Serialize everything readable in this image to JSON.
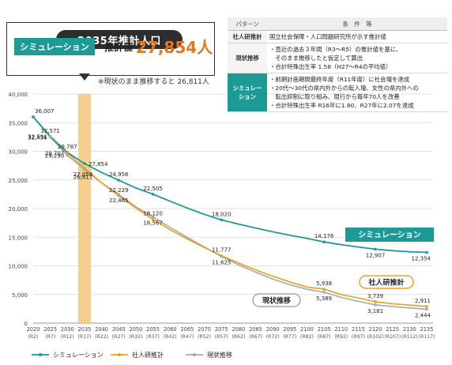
{
  "callout": {
    "title": "2035年推計人口",
    "badge": "シミュレーション",
    "estimate_label": "推計値",
    "estimate_value": "27,854人",
    "note": "※現状のまま推移すると 26,811人"
  },
  "conditions": {
    "headers": [
      "パターン",
      "条　件　等"
    ],
    "rows": [
      {
        "pattern": "社人研推計",
        "lines": [
          "国立社会保障・人口問題研究所が示す推計値"
        ]
      },
      {
        "pattern": "現状推移",
        "lines": [
          "・直近の過去３年間（R3～R5）の推計値を基に、",
          "　そのまま推移したと仮定して算出",
          "・合計特殊出生率 1.58（H27～R4の平均値）"
        ]
      },
      {
        "pattern": "シミュレーション",
        "lines": [
          "・前期計画期間最終年度（R11年度）に社会増を達成",
          "・20代～30代の県内外からの転入増、女性の県内外への",
          "　転出抑制に取り組み、現行から毎年70人を改善",
          "・合計特殊出生率 R16年に1.80、R27年に2.07を達成"
        ]
      }
    ]
  },
  "colors": {
    "simulation": "#1e9a96",
    "ipss": "#e8a020",
    "current": "#a8a8a8",
    "highlight": "#f3c67d",
    "tag_sim_bg": "#1e9a96"
  },
  "chart_data": {
    "type": "line",
    "x": [
      "2020",
      "2025",
      "2030",
      "2035",
      "2040",
      "2045",
      "2050",
      "2055",
      "2060",
      "2065",
      "2070",
      "2075",
      "2080",
      "2085",
      "2090",
      "2095",
      "2100",
      "2105",
      "2110",
      "2115",
      "2120",
      "2125",
      "2130",
      "2135"
    ],
    "x_sub": [
      "(R2)",
      "(R7)",
      "(R12)",
      "(R17)",
      "(R22)",
      "(R27)",
      "(R32)",
      "(R37)",
      "(R42)",
      "(R47)",
      "(R52)",
      "(R57)",
      "(R62)",
      "(R67)",
      "(R72)",
      "(R77)",
      "(R82)",
      "(R87)",
      "(R92)",
      "(R97)",
      "(R102)",
      "(R107)",
      "(R112)",
      "(R117)"
    ],
    "ylim": [
      0,
      40000
    ],
    "yticks": [
      "0",
      "5,000",
      "10,000",
      "15,000",
      "20,000",
      "25,000",
      "30,000",
      "35,000",
      "40,000"
    ],
    "highlight_x": "2035",
    "series": [
      {
        "name": "シミュレーション",
        "key": "simulation",
        "values": [
          36007,
          32571,
          29787,
          27854,
          26300,
          24956,
          23600,
          22505,
          21300,
          20100,
          19000,
          18020,
          17300,
          16600,
          15950,
          15350,
          14800,
          14176,
          13700,
          13300,
          12907,
          12650,
          12450,
          12354
        ]
      },
      {
        "name": "社人研推計",
        "key": "ipss",
        "values": [
          36007,
          32591,
          29707,
          27058,
          24500,
          22229,
          20100,
          18120,
          16300,
          14700,
          13200,
          11777,
          10500,
          9300,
          8200,
          7200,
          6300,
          5938,
          5000,
          4400,
          3739,
          3400,
          3150,
          2911
        ]
      },
      {
        "name": "現状推移",
        "key": "current",
        "values": [
          36007,
          32456,
          29290,
          26811,
          24500,
          22465,
          20300,
          18567,
          16700,
          15000,
          13300,
          11625,
          10200,
          8900,
          7700,
          6700,
          5900,
          5389,
          4500,
          3800,
          3181,
          2900,
          2650,
          2444
        ]
      }
    ],
    "data_labels": [
      {
        "series": "simulation",
        "i": 0,
        "text": "36,007",
        "pos": "above"
      },
      {
        "series": "simulation",
        "i": 1,
        "text": "32,571",
        "pos": "above"
      },
      {
        "series": "simulation",
        "i": 2,
        "text": "29,787",
        "pos": "above"
      },
      {
        "series": "simulation",
        "i": 3,
        "text": "27,854",
        "pos": "right"
      },
      {
        "series": "simulation",
        "i": 5,
        "text": "24,956",
        "pos": "above"
      },
      {
        "series": "simulation",
        "i": 7,
        "text": "22,505",
        "pos": "above"
      },
      {
        "series": "simulation",
        "i": 11,
        "text": "18,020",
        "pos": "above"
      },
      {
        "series": "simulation",
        "i": 17,
        "text": "14,176",
        "pos": "above"
      },
      {
        "series": "simulation",
        "i": 20,
        "text": "12,907",
        "pos": "below"
      },
      {
        "series": "simulation",
        "i": 23,
        "text": "12,354",
        "pos": "below"
      },
      {
        "series": "ipss",
        "i": 1,
        "text": "32,591",
        "pos": "left"
      },
      {
        "series": "current",
        "i": 1,
        "text": "32,456",
        "pos": "left"
      },
      {
        "series": "ipss",
        "i": 2,
        "text": "29,707",
        "pos": "left"
      },
      {
        "series": "current",
        "i": 2,
        "text": "29,290",
        "pos": "left"
      },
      {
        "series": "ipss",
        "i": 3,
        "text": "27,058",
        "pos": "belowC"
      },
      {
        "series": "current",
        "i": 3,
        "text": "26,811",
        "pos": "belowC2"
      },
      {
        "series": "ipss",
        "i": 5,
        "text": "22,229",
        "pos": "above"
      },
      {
        "series": "current",
        "i": 5,
        "text": "22,465",
        "pos": "below"
      },
      {
        "series": "ipss",
        "i": 7,
        "text": "18,120",
        "pos": "above"
      },
      {
        "series": "current",
        "i": 7,
        "text": "18,567",
        "pos": "below"
      },
      {
        "series": "ipss",
        "i": 11,
        "text": "11,777",
        "pos": "above"
      },
      {
        "series": "current",
        "i": 11,
        "text": "11,625",
        "pos": "below"
      },
      {
        "series": "ipss",
        "i": 17,
        "text": "5,938",
        "pos": "above"
      },
      {
        "series": "current",
        "i": 17,
        "text": "5,389",
        "pos": "below"
      },
      {
        "series": "ipss",
        "i": 20,
        "text": "3,739",
        "pos": "above"
      },
      {
        "series": "current",
        "i": 20,
        "text": "3,181",
        "pos": "below"
      },
      {
        "series": "ipss",
        "i": 23,
        "text": "2,911",
        "pos": "above"
      },
      {
        "series": "current",
        "i": 23,
        "text": "2,444",
        "pos": "below"
      }
    ],
    "series_tags": [
      {
        "series": "simulation",
        "text": "シミュレーション"
      },
      {
        "series": "ipss",
        "text": "社人研推計"
      },
      {
        "series": "current",
        "text": "現状推移"
      }
    ],
    "legend": [
      {
        "series": "simulation",
        "text": "シミュレーション"
      },
      {
        "series": "ipss",
        "text": "社人研推計"
      },
      {
        "series": "current",
        "text": "現状推移"
      }
    ],
    "grid": true,
    "legend_position": "bottom-left"
  }
}
